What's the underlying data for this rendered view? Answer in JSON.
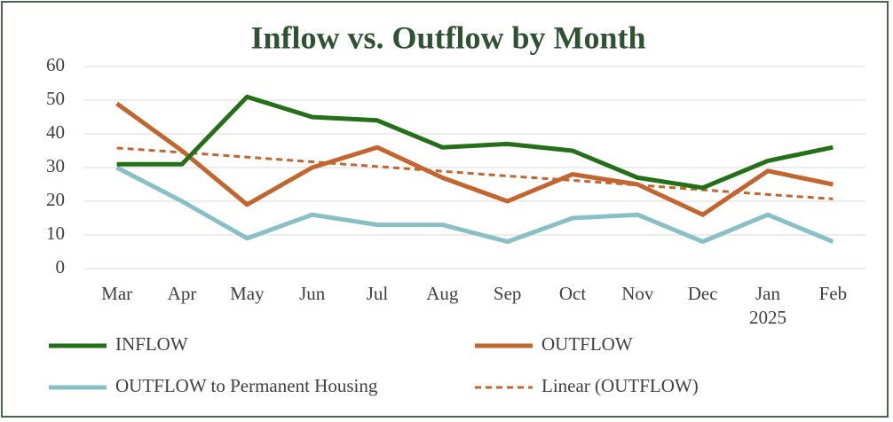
{
  "chart_data": {
    "type": "line",
    "title": "Inflow vs. Outflow by Month",
    "categories": [
      "Mar",
      "Apr",
      "May",
      "Jun",
      "Jul",
      "Aug",
      "Sep",
      "Oct",
      "Nov",
      "Dec",
      "Jan",
      "Feb"
    ],
    "year_labels": [
      null,
      null,
      null,
      null,
      null,
      null,
      null,
      null,
      null,
      null,
      "2025",
      null
    ],
    "series": [
      {
        "name": "INFLOW",
        "color": "#237018",
        "dash": false,
        "values": [
          31,
          31,
          51,
          45,
          44,
          36,
          37,
          35,
          27,
          24,
          32,
          36
        ]
      },
      {
        "name": "OUTFLOW",
        "color": "#c2652f",
        "dash": false,
        "values": [
          49,
          35,
          19,
          30,
          36,
          27,
          20,
          28,
          25,
          16,
          29,
          25
        ]
      },
      {
        "name": "OUTFLOW to Permanent Housing",
        "color": "#88c0c5",
        "dash": false,
        "values": [
          30,
          20,
          9,
          16,
          13,
          13,
          8,
          15,
          16,
          8,
          16,
          8
        ]
      },
      {
        "name": "Linear (OUTFLOW)",
        "color": "#c2652f",
        "dash": true,
        "values": [
          35.8,
          34.5,
          33.1,
          31.7,
          30.3,
          28.9,
          27.5,
          26.2,
          24.8,
          23.4,
          22.0,
          20.7
        ]
      }
    ],
    "ylim": [
      0,
      60
    ],
    "yticks": [
      0,
      10,
      20,
      30,
      40,
      50,
      60
    ],
    "grid": true
  }
}
